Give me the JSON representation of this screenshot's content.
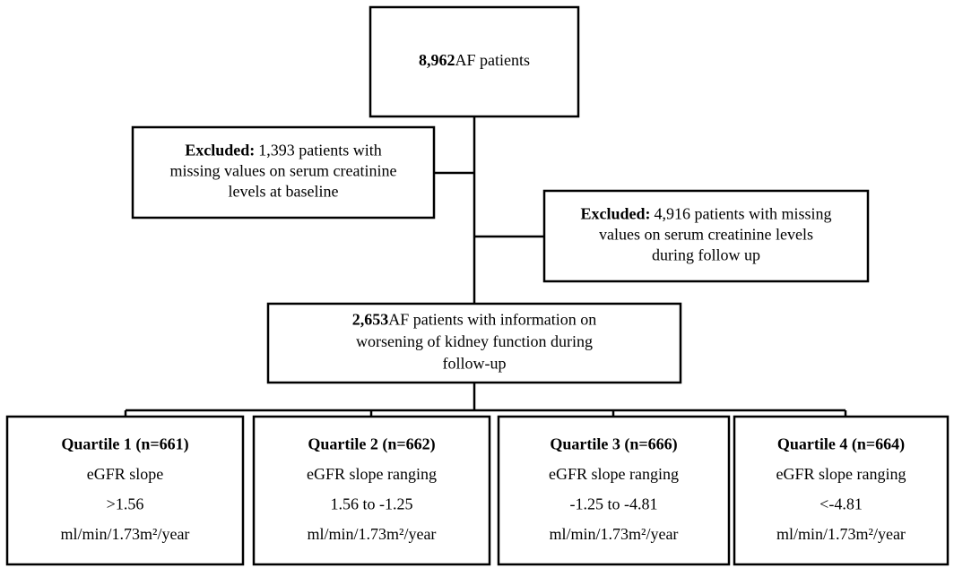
{
  "nodes": [
    {
      "lines": [
        {
          "bold": "8,962",
          "text": "AF patients"
        }
      ]
    },
    {
      "lines": [
        {
          "bold": "Excluded:",
          "text": "1,393 patients with"
        },
        {
          "text": "missing values on serum creatinine"
        },
        {
          "text": "levels at baseline"
        }
      ]
    },
    {
      "lines": [
        {
          "bold": "Excluded:",
          "text": "4,916 patients with missing"
        },
        {
          "text": "values on serum creatinine levels"
        },
        {
          "text": "during follow up"
        }
      ]
    },
    {
      "lines": [
        {
          "bold": "2,653",
          "text": "AF patients with information on"
        },
        {
          "text": "worsening of kidney function during"
        },
        {
          "text": "follow-up"
        }
      ]
    },
    {
      "lines": [
        {
          "bold": "Quartile 1 (n=661)"
        },
        {
          "text": "eGFR slope"
        },
        {
          "text": ">1.56"
        },
        {
          "text": "ml/min/1.73m²/year"
        }
      ]
    },
    {
      "lines": [
        {
          "bold": "Quartile 2 (n=662)"
        },
        {
          "text": "eGFR slope ranging"
        },
        {
          "text": "1.56 to -1.25"
        },
        {
          "text": "ml/min/1.73m²/year"
        }
      ]
    },
    {
      "lines": [
        {
          "bold": "Quartile 3 (n=666)"
        },
        {
          "text": "eGFR slope ranging"
        },
        {
          "text": "-1.25 to -4.81"
        },
        {
          "text": "ml/min/1.73m²/year"
        }
      ]
    },
    {
      "lines": [
        {
          "bold": "Quartile 4 (n=664)"
        },
        {
          "text": "eGFR slope ranging"
        },
        {
          "text": "<-4.81"
        },
        {
          "text": "ml/min/1.73m²/year"
        }
      ]
    }
  ]
}
